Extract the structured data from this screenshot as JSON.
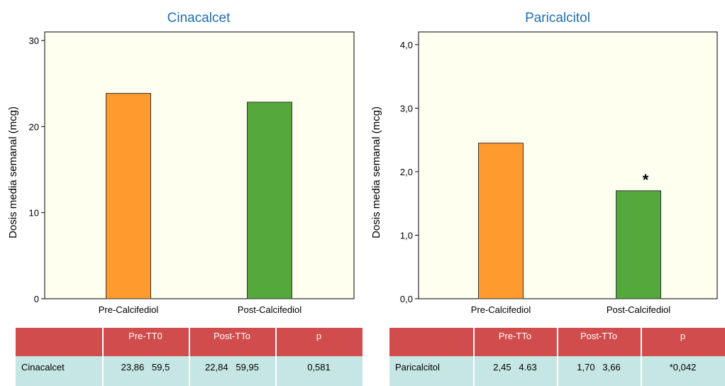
{
  "chart_data": [
    {
      "type": "bar",
      "title": "Cinacalcet",
      "ylabel": "Dosis media semanal (mcg)",
      "categories": [
        "Pre-Calcifediol",
        "Post-Calcifediol"
      ],
      "values": [
        23.86,
        22.84
      ],
      "colors": [
        "#ff9a2e",
        "#55a83c"
      ],
      "ylim": [
        0,
        31
      ],
      "yticks": [
        0,
        10,
        20,
        30
      ],
      "ytick_labels": [
        "0",
        "10",
        "20",
        "30"
      ],
      "annotations": [
        "",
        ""
      ],
      "grid": false
    },
    {
      "type": "bar",
      "title": "Paricalcitol",
      "ylabel": "Dosis media semanal (mcg)",
      "categories": [
        "Pre-Calcifediol",
        "Post-Calcifediol"
      ],
      "values": [
        2.45,
        1.7
      ],
      "colors": [
        "#ff9a2e",
        "#55a83c"
      ],
      "ylim": [
        0,
        4.2
      ],
      "yticks": [
        0,
        1,
        2,
        3,
        4
      ],
      "ytick_labels": [
        "0,0",
        "1,0",
        "2,0",
        "3,0",
        "4,0"
      ],
      "annotations": [
        "",
        "*"
      ],
      "grid": false
    }
  ],
  "tables": [
    {
      "headers": [
        "",
        "Pre-TT0",
        "Post-TTo",
        "p"
      ],
      "row": [
        "Cinacalcet",
        "23,86   59,5",
        "22,84   59,95",
        "0,581"
      ]
    },
    {
      "headers": [
        "",
        "Pre-TTo",
        "Post-TTo",
        "p"
      ],
      "row": [
        "Paricalcitol",
        "2,45   4.63",
        "1,70   3,66",
        "*0,042"
      ]
    }
  ]
}
